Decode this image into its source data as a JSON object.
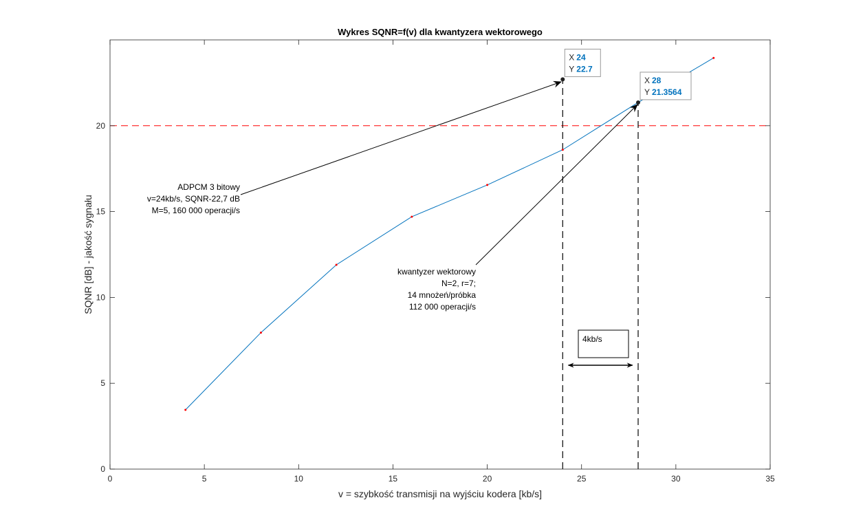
{
  "chart_data": {
    "type": "line",
    "title": "Wykres SQNR=f(v) dla kwantyzera wektorowego",
    "xlabel": "v = szybkość transmisji na wyjściu kodera [kb/s]",
    "ylabel": "SQNR [dB] - jakość sygnału",
    "xlim": [
      0,
      35
    ],
    "ylim": [
      0,
      25
    ],
    "xticks": [
      0,
      5,
      10,
      15,
      20,
      25,
      30,
      35
    ],
    "yticks": [
      0,
      5,
      10,
      15,
      20
    ],
    "grid": false,
    "series": [
      {
        "x": [
          4,
          8,
          12,
          16,
          20,
          24,
          28,
          32
        ],
        "y": [
          3.45,
          7.95,
          11.9,
          14.7,
          16.55,
          18.6,
          21.3564,
          23.95
        ],
        "color": "#0072bd",
        "marker_color": "#ff0000"
      }
    ],
    "reference_line": {
      "y": 20,
      "color": "#ff0000",
      "style": "dashed"
    },
    "vertical_lines": [
      {
        "x": 24,
        "color": "#000000",
        "style": "dashed"
      },
      {
        "x": 28,
        "color": "#000000",
        "style": "dashed"
      }
    ],
    "datatips": [
      {
        "x_label": "X",
        "y_label": "Y",
        "x_value": "24",
        "y_value": "22.7",
        "x": 24,
        "y": 22.7
      },
      {
        "x_label": "X",
        "y_label": "Y",
        "x_value": "28",
        "y_value": "21.3564",
        "x": 28,
        "y": 21.3564
      }
    ],
    "annotations": [
      {
        "lines": [
          "ADPCM 3 bitowy",
          "v=24kb/s, SQNR-22,7 dB",
          "M=5, 160 000 operacji/s"
        ],
        "align": "right"
      },
      {
        "lines": [
          "kwantyzer wektorowy",
          "N=2, r=7;",
          "14 mnożeń/próbka",
          "112 000 operacji/s"
        ],
        "align": "right"
      }
    ],
    "box_annotation": {
      "text": "4kb/s"
    },
    "double_arrow": {
      "x1": 24.3,
      "x2": 27.7,
      "y": 6.05
    }
  }
}
